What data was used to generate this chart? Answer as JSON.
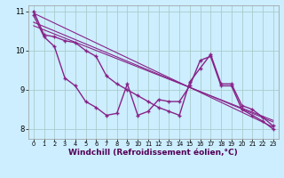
{
  "bg_color": "#cceeff",
  "grid_color": "#aacccc",
  "line_color": "#882288",
  "xlabel": "Windchill (Refroidissement éolien,°C)",
  "xlabel_fontsize": 6.5,
  "xlim": [
    -0.5,
    23.5
  ],
  "ylim": [
    7.75,
    11.15
  ],
  "yticks": [
    8,
    9,
    10,
    11
  ],
  "xticks": [
    0,
    1,
    2,
    3,
    4,
    5,
    6,
    7,
    8,
    9,
    10,
    11,
    12,
    13,
    14,
    15,
    16,
    17,
    18,
    19,
    20,
    21,
    22,
    23
  ],
  "series_jagged": [
    10.9,
    10.35,
    10.1,
    9.3,
    9.1,
    8.7,
    8.55,
    8.35,
    8.4,
    9.15,
    8.35,
    8.45,
    8.75,
    8.7,
    8.7,
    9.1,
    9.75,
    9.85,
    9.1,
    9.1,
    8.5,
    8.35,
    8.2,
    8.0
  ],
  "series_smooth": [
    11.0,
    10.4,
    10.35,
    10.25,
    10.2,
    10.0,
    9.85,
    9.35,
    9.15,
    9.0,
    8.85,
    8.7,
    8.55,
    8.45,
    8.35,
    9.2,
    9.55,
    9.9,
    9.15,
    9.15,
    8.6,
    8.5,
    8.3,
    8.08
  ],
  "trend1_start": 10.95,
  "trend1_end": 8.05,
  "trend2_start": 10.72,
  "trend2_end": 8.18,
  "trend3_start": 10.63,
  "trend3_end": 8.22
}
